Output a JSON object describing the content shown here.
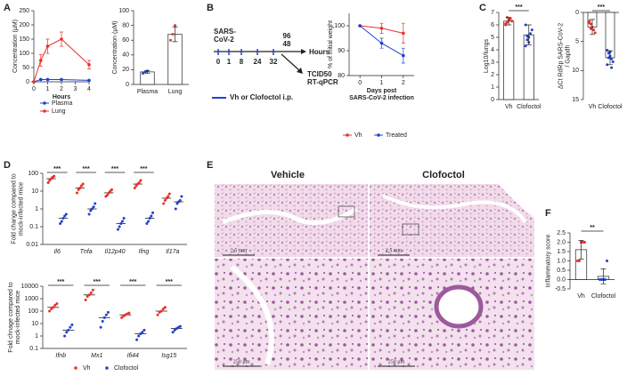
{
  "panel_labels": [
    "A",
    "B",
    "C",
    "D",
    "E",
    "F"
  ],
  "timeline": {
    "start": [
      "SARS-",
      "CoV-2"
    ],
    "ticks": [
      "0",
      "1",
      "8",
      "24",
      "32"
    ],
    "end_labels": [
      "96",
      "48"
    ],
    "unit": "Hours",
    "readouts": [
      "TCID50",
      "RT-qPCR"
    ],
    "treatment": "Vh or Clofoctol i.p."
  },
  "histology": {
    "headers": [
      "Vehicle",
      "Clofoctol"
    ],
    "scale_bars": [
      "2,5 mm",
      "2,5 mm",
      "250 µm",
      "250 µm"
    ]
  },
  "chart_data": [
    {
      "type": "line",
      "ylabel": "Concentration (µM)",
      "xlabel": "Hours",
      "x": [
        0,
        0.5,
        1,
        2,
        4
      ],
      "xlim": [
        0,
        4
      ],
      "xticks": [
        0,
        1,
        2,
        3,
        4
      ],
      "ylim": [
        0,
        250
      ],
      "yticks": [
        0,
        50,
        100,
        150,
        200,
        250
      ],
      "legend": true,
      "series": [
        {
          "name": "Plasma",
          "color": "#2140d0",
          "values": [
            0,
            8,
            8,
            8,
            5
          ]
        },
        {
          "name": "Lung",
          "color": "#e8302a",
          "values": [
            0,
            75,
            125,
            150,
            60
          ],
          "errors": [
            0,
            20,
            25,
            25,
            15
          ]
        }
      ]
    },
    {
      "type": "bar",
      "ylabel": "Concentration (µM)",
      "categories": [
        "Plasma",
        "Lung"
      ],
      "ylim": [
        0,
        100
      ],
      "yticks": [
        0,
        20,
        40,
        60,
        80,
        100
      ],
      "series": [
        {
          "color": "#ffffff",
          "values": [
            17,
            68
          ],
          "errors": [
            2,
            10
          ],
          "point_colors": [
            "#2140d0",
            "#e8302a"
          ],
          "points": [
            [
              15,
              17,
              18
            ],
            [
              60,
              68,
              80
            ]
          ]
        }
      ]
    },
    {
      "type": "line",
      "ylabel": "% of initial weight",
      "xlabel": [
        "Days post",
        "SARS-CoV-2 infection"
      ],
      "x": [
        0,
        1,
        2
      ],
      "xlim": [
        -0.5,
        2.5
      ],
      "xticks": [
        0,
        1,
        2
      ],
      "ylim": [
        80,
        105
      ],
      "yticks": [
        80,
        90,
        100
      ],
      "legend": true,
      "series": [
        {
          "name": "Vh",
          "color": "#e8302a",
          "values": [
            100,
            99,
            97
          ],
          "errors": [
            0,
            2,
            4
          ]
        },
        {
          "name": "Treated",
          "color": "#2140d0",
          "values": [
            100,
            93,
            88
          ],
          "errors": [
            0,
            2,
            3
          ]
        }
      ]
    },
    {
      "type": "bar",
      "ylabel": "Log10/lungs",
      "categories": [
        "Vh",
        "Clofoctol"
      ],
      "ylim": [
        0,
        7
      ],
      "yticks": [
        0,
        1,
        2,
        3,
        4,
        5,
        6,
        7
      ],
      "significance": "***",
      "series": [
        {
          "color": "#ffffff",
          "values": [
            6.3,
            5.2
          ],
          "errors": [
            0.3,
            0.8
          ],
          "point_colors": [
            "#e8302a",
            "#2140d0"
          ],
          "points": [
            [
              6.0,
              6.2,
              6.4,
              6.5,
              6.3,
              6.1,
              6.6
            ],
            [
              4.3,
              4.8,
              5.0,
              5.3,
              5.6,
              6.0,
              5.1,
              4.6
            ]
          ]
        }
      ]
    },
    {
      "type": "bar",
      "ylabel": [
        "ΔCt RdRp SARS-CoV-2",
        "/ Gapdh"
      ],
      "categories": [
        "Vh",
        "Clofoctol"
      ],
      "ylim": [
        15,
        0
      ],
      "yticks": [
        0,
        5,
        10,
        15
      ],
      "significance": "***",
      "series": [
        {
          "color": "#ffffff",
          "values": [
            2.5,
            7.8
          ],
          "errors": [
            1.3,
            1.2
          ],
          "point_colors": [
            "#e8302a",
            "#2140d0"
          ],
          "points": [
            [
              1.5,
              2,
              2.5,
              3,
              3.5,
              1.8,
              2.8
            ],
            [
              6.5,
              7,
              7.5,
              8,
              8.5,
              9,
              7.8,
              6.8,
              9.5
            ]
          ]
        }
      ]
    },
    {
      "type": "dot",
      "log": true,
      "ylabel": [
        "Fold change compared to",
        "mock-infected mice"
      ],
      "categories": [
        "Il6",
        "Tnfa",
        "Il12p40",
        "Ifng",
        "Il17a"
      ],
      "ylim": [
        0.01,
        100
      ],
      "yticks": [
        0.01,
        0.1,
        1,
        10,
        100
      ],
      "significance": [
        "***",
        "***",
        "***",
        "***",
        null
      ],
      "series": [
        {
          "name": "Vh",
          "color": "#e8302a",
          "values": [
            50,
            15,
            8,
            25,
            4
          ],
          "points": [
            [
              30,
              40,
              50,
              60,
              70
            ],
            [
              8,
              12,
              15,
              20,
              25
            ],
            [
              5,
              6,
              8,
              10,
              12
            ],
            [
              15,
              20,
              25,
              30,
              40
            ],
            [
              2,
              3,
              4,
              5,
              7
            ]
          ]
        },
        {
          "name": "Clofoctol",
          "color": "#2140d0",
          "values": [
            0.3,
            1,
            0.15,
            0.3,
            2.5
          ],
          "points": [
            [
              0.15,
              0.2,
              0.3,
              0.4,
              0.5
            ],
            [
              0.5,
              0.8,
              1,
              1.3,
              2
            ],
            [
              0.07,
              0.1,
              0.15,
              0.2,
              0.3
            ],
            [
              0.15,
              0.2,
              0.3,
              0.4,
              0.6
            ],
            [
              1,
              2,
              2.5,
              3,
              5
            ]
          ]
        }
      ]
    },
    {
      "type": "dot",
      "log": true,
      "ylabel": [
        "Fold chnage compared to",
        "mock-infected mice"
      ],
      "categories": [
        "Ifnb",
        "Mx1",
        "Ifi44",
        "Isg15"
      ],
      "ylim": [
        0.1,
        10000
      ],
      "yticks": [
        0.1,
        1,
        10,
        100,
        1000,
        10000
      ],
      "significance": [
        "***",
        "***",
        "***",
        "***"
      ],
      "legend": true,
      "series": [
        {
          "name": "Vh",
          "color": "#e8302a",
          "values": [
            200,
            2000,
            50,
            100
          ],
          "points": [
            [
              100,
              150,
              200,
              300,
              400
            ],
            [
              800,
              1500,
              2000,
              3000,
              5000
            ],
            [
              30,
              40,
              50,
              60,
              70
            ],
            [
              50,
              80,
              100,
              150,
              200
            ]
          ]
        },
        {
          "name": "Clofoctol",
          "color": "#2140d0",
          "values": [
            3,
            30,
            1.5,
            4
          ],
          "points": [
            [
              1,
              2,
              3,
              5,
              8
            ],
            [
              5,
              15,
              30,
              50,
              80
            ],
            [
              0.5,
              1,
              1.5,
              2,
              3
            ],
            [
              2,
              3,
              4,
              5,
              6
            ]
          ]
        }
      ]
    },
    {
      "type": "bar",
      "ylabel": "Inflammatory score",
      "categories": [
        "Vh",
        "Clofoctol"
      ],
      "ylim": [
        -0.5,
        2.5
      ],
      "yticks": [
        -0.5,
        {
          "value": 0,
          "label": "0.0"
        },
        0.5,
        {
          "value": 1,
          "label": "1.0"
        },
        1.5,
        {
          "value": 2,
          "label": "2.0"
        },
        2.5
      ],
      "significance": "**",
      "series": [
        {
          "color": "#ffffff",
          "values": [
            1.6,
            0.17
          ],
          "errors": [
            0.5,
            0.4
          ],
          "point_colors": [
            "#e8302a",
            "#2140d0"
          ],
          "points": [
            [
              1,
              1,
              2,
              2,
              2
            ],
            [
              0,
              0,
              0,
              0,
              1
            ]
          ]
        }
      ]
    }
  ]
}
